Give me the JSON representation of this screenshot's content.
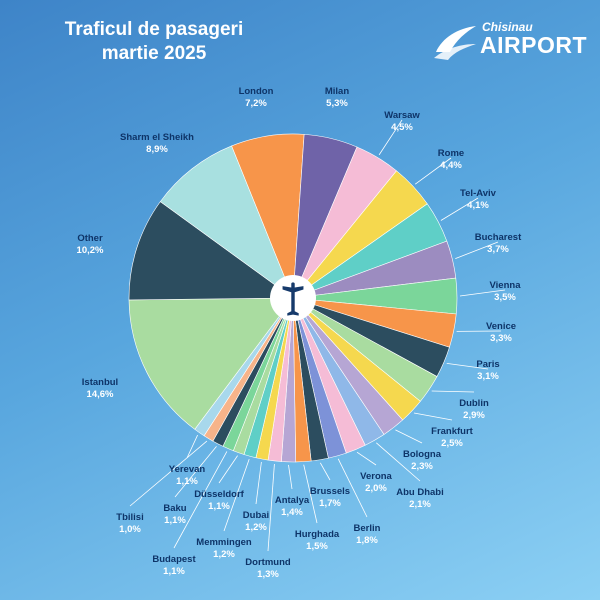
{
  "header": {
    "title_line1": "Traficul de pasageri",
    "title_line2": "martie 2025"
  },
  "logo": {
    "small_text": "Chisinau",
    "big_text": "AIRPORT"
  },
  "colors": {
    "background_top": "#3e84c8",
    "background_bottom": "#8cd0f4",
    "label_name": "#0e3468",
    "label_value": "#ffffff"
  },
  "chart_data": {
    "type": "pie",
    "title": "Traficul de pasageri martie 2025",
    "slices": [
      {
        "name": "London",
        "label": "7,2%",
        "value": 7.2,
        "color": "#f7954a"
      },
      {
        "name": "Milan",
        "label": "5,3%",
        "value": 5.3,
        "color": "#6f63a8"
      },
      {
        "name": "Warsaw",
        "label": "4,5%",
        "value": 4.5,
        "color": "#f5bcd6"
      },
      {
        "name": "Rome",
        "label": "4,4%",
        "value": 4.4,
        "color": "#f5d84e"
      },
      {
        "name": "Tel-Aviv",
        "label": "4,1%",
        "value": 4.1,
        "color": "#5fcfc7"
      },
      {
        "name": "Bucharest",
        "label": "3,7%",
        "value": 3.7,
        "color": "#9c8cc0"
      },
      {
        "name": "Vienna",
        "label": "3,5%",
        "value": 3.5,
        "color": "#7bd69a"
      },
      {
        "name": "Venice",
        "label": "3,3%",
        "value": 3.3,
        "color": "#f7954a"
      },
      {
        "name": "Paris",
        "label": "3,1%",
        "value": 3.1,
        "color": "#2c4d5f"
      },
      {
        "name": "Dublin",
        "label": "2,9%",
        "value": 2.9,
        "color": "#a9dca0"
      },
      {
        "name": "Frankfurt",
        "label": "2,5%",
        "value": 2.5,
        "color": "#f5d84e"
      },
      {
        "name": "Bologna",
        "label": "2,3%",
        "value": 2.3,
        "color": "#b6a6d4"
      },
      {
        "name": "Abu Dhabi",
        "label": "2,1%",
        "value": 2.1,
        "color": "#8fb8e8"
      },
      {
        "name": "Verona",
        "label": "2,0%",
        "value": 2.0,
        "color": "#f5bcd6"
      },
      {
        "name": "Berlin",
        "label": "1,8%",
        "value": 1.8,
        "color": "#7d92d8"
      },
      {
        "name": "Brussels",
        "label": "1,7%",
        "value": 1.7,
        "color": "#2c4d5f"
      },
      {
        "name": "Hurghada",
        "label": "1,5%",
        "value": 1.5,
        "color": "#f7954a"
      },
      {
        "name": "Antalya",
        "label": "1,4%",
        "value": 1.4,
        "color": "#b6a6d4"
      },
      {
        "name": "Dortmund",
        "label": "1,3%",
        "value": 1.3,
        "color": "#f5bcd6"
      },
      {
        "name": "Dubai",
        "label": "1,2%",
        "value": 1.2,
        "color": "#f5d84e"
      },
      {
        "name": "Memmingen",
        "label": "1,2%",
        "value": 1.2,
        "color": "#5fcfc7"
      },
      {
        "name": "Düsseldorf",
        "label": "1,1%",
        "value": 1.1,
        "color": "#a9dca0"
      },
      {
        "name": "Budapest",
        "label": "1,1%",
        "value": 1.1,
        "color": "#7bd69a"
      },
      {
        "name": "Baku",
        "label": "1,1%",
        "value": 1.1,
        "color": "#2c4d5f"
      },
      {
        "name": "Tbilisi",
        "label": "1,0%",
        "value": 1.0,
        "color": "#f7b48a"
      },
      {
        "name": "Yerevan",
        "label": "1,1%",
        "value": 1.1,
        "color": "#a8d8ec"
      },
      {
        "name": "Istanbul",
        "label": "14,6%",
        "value": 14.6,
        "color": "#a9dca0"
      },
      {
        "name": "Other",
        "label": "10,2%",
        "value": 10.2,
        "color": "#2c4d5f"
      },
      {
        "name": "Sharm el Sheikh",
        "label": "8,9%",
        "value": 8.9,
        "color": "#a8e0e0"
      }
    ],
    "center_icon": "airplane-icon",
    "legend": "none"
  }
}
